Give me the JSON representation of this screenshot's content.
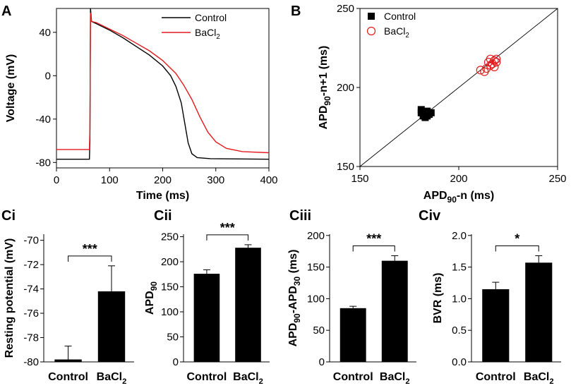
{
  "chart_data": [
    {
      "panel": "A",
      "type": "line",
      "xlabel": "Time (ms)",
      "ylabel": "Voltage (mV)",
      "xlim": [
        0,
        400
      ],
      "ylim": [
        -85,
        62
      ],
      "xticks": [
        "0",
        "100",
        "200",
        "300",
        "400"
      ],
      "yticks": [
        "40",
        "0",
        "-40",
        "-80"
      ],
      "legend": {
        "position": "top-right",
        "entries": [
          "Control",
          "BaCl2"
        ]
      },
      "series": [
        {
          "name": "Control",
          "color": "#000000",
          "points": [
            [
              0,
              -77
            ],
            [
              62,
              -77
            ],
            [
              63,
              -60
            ],
            [
              64,
              62
            ],
            [
              66,
              50
            ],
            [
              75,
              48
            ],
            [
              100,
              42
            ],
            [
              125,
              35
            ],
            [
              150,
              27
            ],
            [
              175,
              19
            ],
            [
              200,
              9
            ],
            [
              215,
              0
            ],
            [
              225,
              -10
            ],
            [
              235,
              -25
            ],
            [
              242,
              -45
            ],
            [
              248,
              -62
            ],
            [
              255,
              -72
            ],
            [
              265,
              -75.5
            ],
            [
              290,
              -76.5
            ],
            [
              400,
              -77
            ]
          ]
        },
        {
          "name": "BaCl2",
          "color": "#e41a1c",
          "points": [
            [
              0,
              -68
            ],
            [
              62,
              -68
            ],
            [
              63,
              -50
            ],
            [
              64,
              58
            ],
            [
              66,
              50
            ],
            [
              75,
              49
            ],
            [
              100,
              43
            ],
            [
              125,
              37
            ],
            [
              150,
              30
            ],
            [
              175,
              23
            ],
            [
              200,
              14
            ],
            [
              225,
              2
            ],
            [
              240,
              -9
            ],
            [
              255,
              -22
            ],
            [
              270,
              -38
            ],
            [
              285,
              -52
            ],
            [
              300,
              -61
            ],
            [
              320,
              -67
            ],
            [
              350,
              -70
            ],
            [
              400,
              -71
            ]
          ]
        }
      ]
    },
    {
      "panel": "B",
      "type": "scatter",
      "xlabel": "APD",
      "xlabel_sub": "90",
      "xlabel_tail": "-n (ms)",
      "ylabel": "APD",
      "ylabel_sub": "90",
      "ylabel_tail": "-n+1 (ms)",
      "xlim": [
        150,
        250
      ],
      "ylim": [
        150,
        250
      ],
      "xticks": [
        "150",
        "200",
        "250"
      ],
      "yticks": [
        "150",
        "200",
        "250"
      ],
      "identity_line": true,
      "legend": {
        "position": "top-left",
        "entries": [
          "Control",
          "BaCl2"
        ]
      },
      "series": [
        {
          "name": "Control",
          "marker": "filled-square",
          "color": "#000000",
          "points": [
            [
              181,
              186
            ],
            [
              182,
              184
            ],
            [
              183,
              183
            ],
            [
              184,
              182
            ],
            [
              182,
              182
            ],
            [
              185,
              183
            ],
            [
              186,
              184
            ],
            [
              183,
              181
            ],
            [
              181,
              184
            ],
            [
              184,
              185
            ]
          ]
        },
        {
          "name": "BaCl2",
          "marker": "open-circle",
          "color": "#e41a1c",
          "points": [
            [
              211,
              211
            ],
            [
              213,
              210
            ],
            [
              214,
              212
            ],
            [
              215,
              216
            ],
            [
              216,
              218
            ],
            [
              217,
              215
            ],
            [
              218,
              217
            ],
            [
              219,
              218
            ],
            [
              218,
              213
            ],
            [
              216,
              214
            ],
            [
              219,
              216
            ]
          ]
        }
      ]
    },
    {
      "panel": "Ci",
      "type": "bar",
      "categories": [
        "Control",
        "BaCl2"
      ],
      "values": [
        -79.8,
        -74.2
      ],
      "errors": [
        1.1,
        2.1
      ],
      "ylabel": "Resting potential (mV)",
      "ylim": [
        -80,
        -69.5
      ],
      "yticks": [
        "-70",
        "-72",
        "-74",
        "-76",
        "-78",
        "-80"
      ],
      "significance": "***"
    },
    {
      "panel": "Cii",
      "type": "bar",
      "categories": [
        "Control",
        "BaCl2"
      ],
      "values": [
        176,
        228
      ],
      "errors": [
        8,
        6
      ],
      "ylabel": "APD",
      "ylabel_sub": "90",
      "ylim": [
        0,
        255
      ],
      "yticks": [
        "0",
        "50",
        "100",
        "150",
        "200",
        "250"
      ],
      "significance": "***"
    },
    {
      "panel": "Ciii",
      "type": "bar",
      "categories": [
        "Control",
        "BaCl2"
      ],
      "values": [
        85,
        160
      ],
      "errors": [
        3,
        8
      ],
      "ylabel": "APD",
      "ylabel_sub": "90",
      "ylabel_mid": "-APD",
      "ylabel_sub2": "30",
      "ylabel_tail": " (ms)",
      "ylim": [
        0,
        202
      ],
      "yticks": [
        "0",
        "50",
        "100",
        "150",
        "200"
      ],
      "significance": "***"
    },
    {
      "panel": "Civ",
      "type": "bar",
      "categories": [
        "Control",
        "BaCl2"
      ],
      "values": [
        1.15,
        1.57
      ],
      "errors": [
        0.11,
        0.11
      ],
      "ylabel": "BVR (ms)",
      "ylim": [
        0,
        2.02
      ],
      "yticks": [
        "0.0",
        "0.5",
        "1.0",
        "1.5",
        "2.0"
      ],
      "significance": "*"
    }
  ]
}
